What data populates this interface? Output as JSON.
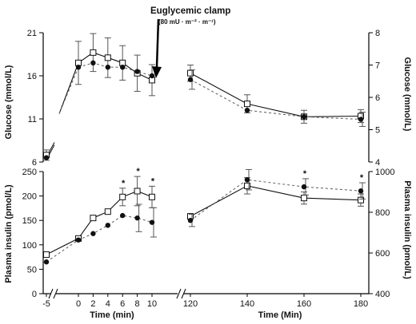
{
  "annotation": {
    "title": "Euglycemic clamp",
    "subtitle": "(80 mU · m⁻² · m⁻¹)"
  },
  "chart_data": [
    {
      "type": "line",
      "panel": "glucose-left",
      "ylabel": "Glucose (mmol/L)",
      "ylim": [
        6,
        21
      ],
      "yticks": [
        "6",
        "11",
        "16",
        "21"
      ],
      "x": [
        -5,
        0,
        2,
        4,
        6,
        8,
        10
      ],
      "series": [
        {
          "marker": "open-square",
          "line": "solid",
          "values": [
            6.8,
            17.5,
            18.7,
            18.1,
            17.5,
            16.3,
            15.5
          ],
          "err": [
            0.6,
            2.5,
            2.2,
            2.3,
            2.0,
            2.1,
            1.8
          ]
        },
        {
          "marker": "filled-circle",
          "line": "dashed",
          "values": [
            6.5,
            17.0,
            17.5,
            17.0,
            17.0,
            16.5,
            16.0
          ],
          "err": [
            null,
            null,
            null,
            null,
            null,
            null,
            null
          ]
        }
      ]
    },
    {
      "type": "line",
      "panel": "glucose-right",
      "ylabel": "Glucose (mmol/L)",
      "ylim": [
        4,
        8
      ],
      "yticks": [
        "4",
        "5",
        "6",
        "7",
        "8"
      ],
      "x": [
        120,
        140,
        160,
        180
      ],
      "series": [
        {
          "marker": "open-square",
          "line": "solid",
          "values": [
            6.75,
            5.8,
            5.4,
            5.42
          ],
          "err": [
            0.25,
            0.28,
            0.2,
            0.2
          ]
        },
        {
          "marker": "filled-circle",
          "line": "dashed",
          "values": [
            6.55,
            5.6,
            5.4,
            5.32
          ],
          "err": [
            0.3,
            null,
            null,
            0.22
          ]
        }
      ]
    },
    {
      "type": "line",
      "panel": "insulin-left",
      "ylabel": "Plasma insulin (pmol/L)",
      "ylim": [
        0,
        250
      ],
      "yticks": [
        "0",
        "50",
        "100",
        "150",
        "200",
        "250"
      ],
      "x": [
        -5,
        0,
        2,
        4,
        6,
        8,
        10
      ],
      "significant": [
        6,
        8,
        10
      ],
      "series": [
        {
          "marker": "open-square",
          "line": "solid",
          "values": [
            80,
            113,
            155,
            168,
            198,
            210,
            198
          ],
          "err": [
            null,
            null,
            null,
            null,
            18,
            30,
            22
          ]
        },
        {
          "marker": "filled-circle",
          "line": "dashed",
          "values": [
            65,
            110,
            123,
            140,
            160,
            155,
            146
          ],
          "err": [
            null,
            null,
            null,
            null,
            null,
            28,
            30
          ]
        }
      ]
    },
    {
      "type": "line",
      "panel": "insulin-right",
      "ylabel": "Plasma insulin (pmol/L)",
      "ylim": [
        400,
        1000
      ],
      "yticks": [
        "400",
        "600",
        "800",
        "1000"
      ],
      "x": [
        120,
        140,
        160,
        180
      ],
      "significant": [
        160,
        180
      ],
      "series": [
        {
          "marker": "open-square",
          "line": "solid",
          "values": [
            780,
            930,
            870,
            860
          ],
          "err": [
            null,
            40,
            30,
            30
          ]
        },
        {
          "marker": "filled-circle",
          "line": "dashed",
          "values": [
            760,
            960,
            925,
            905
          ],
          "err": [
            30,
            50,
            40,
            40
          ]
        }
      ]
    }
  ],
  "xaxis_left": {
    "label": "Time (min)",
    "ticks": [
      "-5",
      "0",
      "2",
      "4",
      "6",
      "8",
      "10"
    ]
  },
  "xaxis_right": {
    "label": "Time (Min)",
    "ticks": [
      "120",
      "140",
      "160",
      "180"
    ]
  }
}
